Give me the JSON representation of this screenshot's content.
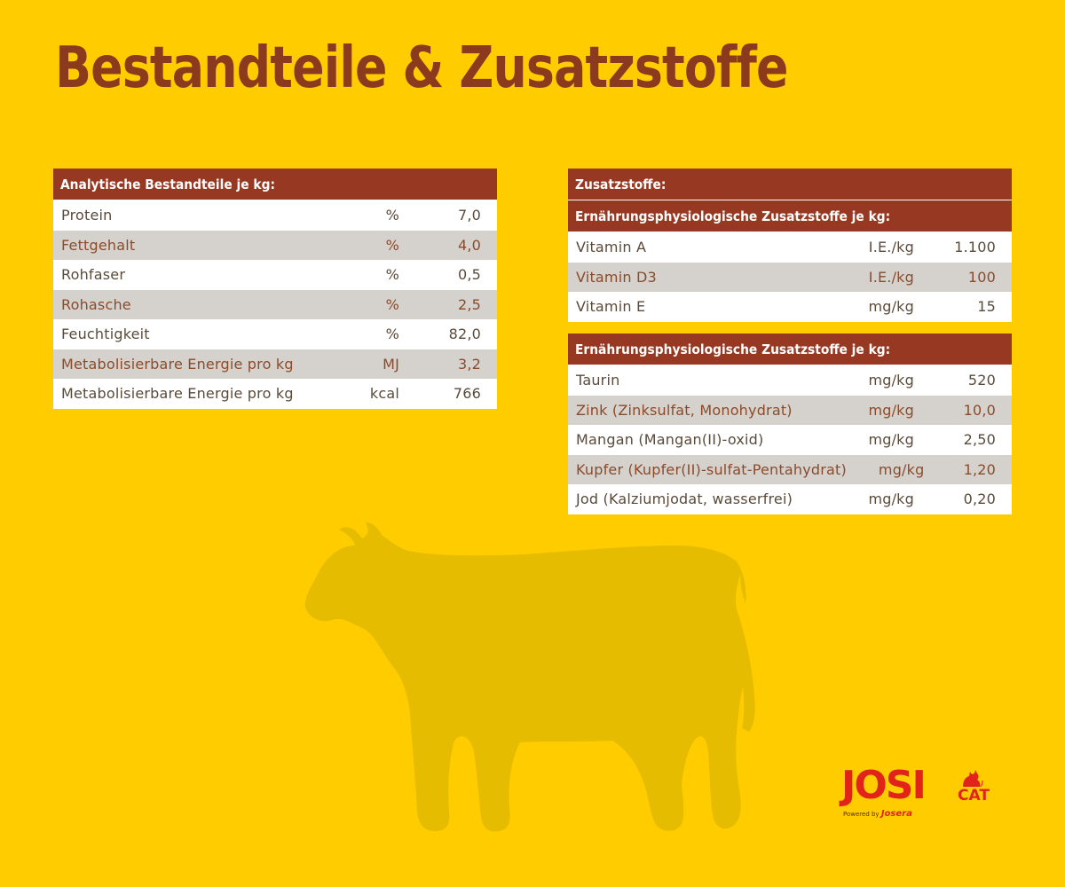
{
  "colors": {
    "background": "#FFCC00",
    "header": "#963822",
    "title": "#8B3A1E",
    "logo": "#E2231A"
  },
  "title": "Bestandteile & Zusatzstoffe",
  "analytic": {
    "header": "Analytische Bestandteile je kg:",
    "rows": [
      {
        "name": "Protein",
        "unit": "%",
        "value": "7,0"
      },
      {
        "name": "Fettgehalt",
        "unit": "%",
        "value": "4,0"
      },
      {
        "name": "Rohfaser",
        "unit": "%",
        "value": "0,5"
      },
      {
        "name": "Rohasche",
        "unit": "%",
        "value": "2,5"
      },
      {
        "name": "Feuchtigkeit",
        "unit": "%",
        "value": "82,0"
      },
      {
        "name": "Metabolisierbare Energie pro kg",
        "unit": "MJ",
        "value": "3,2"
      },
      {
        "name": "Metabolisierbare Energie pro kg",
        "unit": "kcal",
        "value": "766"
      }
    ]
  },
  "additives": {
    "header": "Zusatzstoffe:",
    "subheader": "Ernährungsphysiologische Zusatzstoffe je kg:",
    "rows": [
      {
        "name": "Vitamin A",
        "unit": "I.E./kg",
        "value": "1.100"
      },
      {
        "name": "Vitamin D3",
        "unit": "I.E./kg",
        "value": "100"
      },
      {
        "name": "Vitamin E",
        "unit": "mg/kg",
        "value": "15"
      }
    ]
  },
  "trace": {
    "header": "Ernährungsphysiologische Zusatzstoffe je kg:",
    "rows": [
      {
        "name": "Taurin",
        "unit": "mg/kg",
        "value": "520"
      },
      {
        "name": "Zink (Zinksulfat, Monohydrat)",
        "unit": "mg/kg",
        "value": "10,0"
      },
      {
        "name": "Mangan (Mangan(II)-oxid)",
        "unit": "mg/kg",
        "value": "2,50"
      },
      {
        "name": "Kupfer (Kupfer(II)-sulfat-Pentahydrat)",
        "unit": "mg/kg",
        "value": "1,20"
      },
      {
        "name": "Jod (Kalziumjodat, wasserfrei)",
        "unit": "mg/kg",
        "value": "0,20"
      }
    ]
  },
  "logo": {
    "brand": "JOSI",
    "sub": "CAT",
    "powered_prefix": "Powered by",
    "powered_brand": "Josera"
  },
  "icons": [
    "cow-silhouette-icon",
    "cat-icon"
  ]
}
